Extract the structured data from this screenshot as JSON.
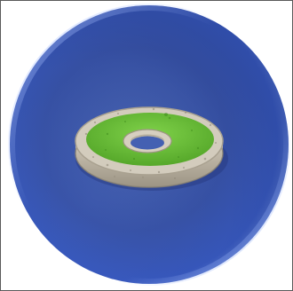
{
  "image": {
    "subject": "sphere-with-ring",
    "colors": {
      "background": "#ffffff",
      "border": "#5a5a5a",
      "sphere_center": "#4a6ab8",
      "sphere_mid": "#3550a8",
      "sphere_edge": "#3a5fc8",
      "sphere_rim_light": "#8aa8f0",
      "ring_stone_light": "#d8d2c4",
      "ring_stone": "#b9b1a0",
      "ring_stone_dark": "#7f786a",
      "ring_grass": "#6ec43a",
      "ring_grass_dark": "#4a9a22",
      "hole_blue": "#3f5cb0"
    }
  }
}
